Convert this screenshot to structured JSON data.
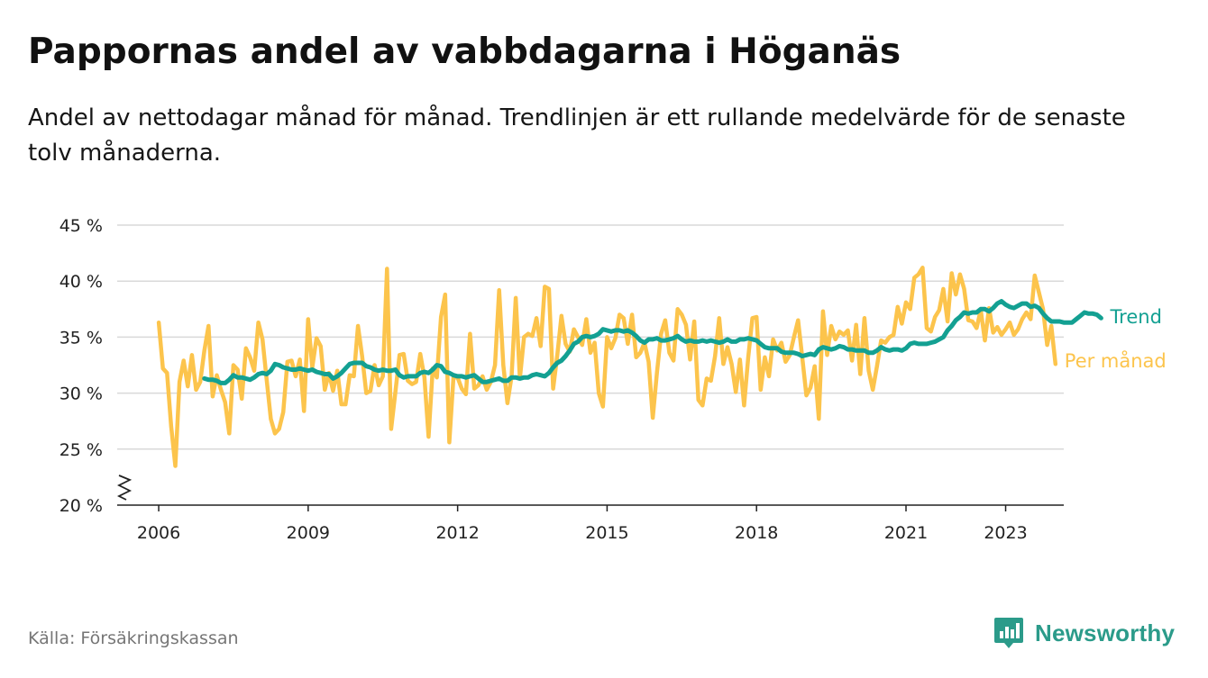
{
  "title": "Pappornas andel av vabbdagarna i Höganäs",
  "subtitle": "Andel av nettodagar månad för månad. Trendlinjen är ett rullande medelvärde för de senaste tolv månaderna.",
  "source": "Källa: Försäkringskassan",
  "brand": {
    "name": "Newsworthy",
    "logo_icon": "bar-chart-speech-bubble-icon"
  },
  "colors": {
    "monthly": "#fcc44c",
    "trend": "#13a092",
    "grid": "#d9d9d9",
    "axis": "#222222",
    "brand": "#2b9b8a"
  },
  "chart_data": {
    "type": "line",
    "x_unit": "months since January 2006",
    "x_ticks": [
      {
        "label": "2006",
        "x": 0
      },
      {
        "label": "2009",
        "x": 36
      },
      {
        "label": "2012",
        "x": 72
      },
      {
        "label": "2015",
        "x": 108
      },
      {
        "label": "2018",
        "x": 144
      },
      {
        "label": "2021",
        "x": 180
      },
      {
        "label": "2023",
        "x": 204
      }
    ],
    "y_ticks": [
      {
        "label": "20 %",
        "value": 20
      },
      {
        "label": "25 %",
        "value": 25
      },
      {
        "label": "30 %",
        "value": 30
      },
      {
        "label": "35 %",
        "value": 35
      },
      {
        "label": "40 %",
        "value": 40
      },
      {
        "label": "45 %",
        "value": 45
      }
    ],
    "xlim": [
      -10,
      218
    ],
    "ylim": [
      20,
      45
    ],
    "y_axis_break": true,
    "grid": true,
    "legend": "direct labels at line ends (right)",
    "series": [
      {
        "name": "Per månad",
        "key": "monthly",
        "start_x": 0,
        "values": [
          36.3,
          32.2,
          31.8,
          27,
          23.5,
          31,
          32.9,
          30.6,
          33.4,
          30.3,
          31,
          33.8,
          36,
          29.7,
          31.6,
          30.3,
          29.2,
          26.4,
          32.5,
          32.1,
          29.5,
          34,
          33.2,
          32,
          36.3,
          34.8,
          31.2,
          27.7,
          26.4,
          26.8,
          28.3,
          32.8,
          32.9,
          31.5,
          33,
          28.4,
          36.6,
          32.3,
          34.9,
          34.2,
          30.3,
          31.8,
          30.2,
          32,
          29,
          29,
          31.6,
          31.5,
          36,
          33.3,
          30,
          30.2,
          32.5,
          30.7,
          31.5,
          41.1,
          26.8,
          30.1,
          33.4,
          33.5,
          31.1,
          30.8,
          31,
          33.5,
          31.4,
          26.1,
          32.2,
          31.4,
          36.8,
          38.8,
          25.6,
          31.4,
          31.4,
          30.4,
          29.9,
          35.3,
          30.4,
          30.7,
          31.5,
          30.3,
          31,
          32.5,
          39.2,
          32.5,
          29.1,
          31.5,
          38.5,
          31.3,
          35,
          35.3,
          35.1,
          36.7,
          34.2,
          39.5,
          39.3,
          30.4,
          33.4,
          36.9,
          34.4,
          33.7,
          35.7,
          35,
          34.3,
          36.6,
          33.6,
          34.5,
          30,
          28.8,
          35,
          34,
          34.9,
          37,
          36.7,
          34.4,
          37,
          33.2,
          33.6,
          34.5,
          32.8,
          27.8,
          31.8,
          35.3,
          36.5,
          33.6,
          32.9,
          37.5,
          37,
          36.1,
          33,
          36.4,
          29.4,
          28.9,
          31.3,
          31.1,
          33.3,
          36.7,
          32.6,
          34.1,
          32.6,
          30.1,
          33,
          28.9,
          33.2,
          36.7,
          36.8,
          30.3,
          33.2,
          31.5,
          34.8,
          33.8,
          34.5,
          32.8,
          33.4,
          35,
          36.5,
          33.2,
          29.8,
          30.5,
          32.4,
          27.7,
          37.3,
          33.4,
          36,
          34.8,
          35.5,
          35.2,
          35.6,
          32.9,
          36.1,
          31.7,
          36.7,
          32,
          30.3,
          32.4,
          34.7,
          34.5,
          35,
          35.2,
          37.7,
          36.2,
          38.1,
          37.5,
          40.3,
          40.6,
          41.2,
          35.8,
          35.5,
          36.8,
          37.4,
          39.3,
          36.4,
          40.7,
          38.8,
          40.6,
          39.3,
          36.5,
          36.4,
          35.8,
          37.4,
          34.7,
          37.6,
          35.4,
          35.9,
          35.2,
          35.7,
          36.3,
          35.2,
          35.7,
          36.6,
          37.2,
          36.6,
          40.5,
          39,
          37.5,
          34.3,
          36,
          32.6
        ]
      },
      {
        "name": "Trend",
        "key": "trend",
        "start_x": 11,
        "values": [
          31.3,
          31.2,
          31.2,
          31.1,
          30.9,
          30.9,
          31.2,
          31.6,
          31.4,
          31.4,
          31.3,
          31.2,
          31.4,
          31.7,
          31.8,
          31.7,
          32.0,
          32.6,
          32.5,
          32.3,
          32.2,
          32.1,
          32.1,
          32.2,
          32.1,
          32.0,
          32.1,
          31.9,
          31.8,
          31.7,
          31.7,
          31.3,
          31.5,
          31.8,
          32.2,
          32.6,
          32.7,
          32.7,
          32.7,
          32.4,
          32.3,
          32.1,
          32.0,
          32.1,
          32.0,
          32.0,
          32.1,
          31.6,
          31.4,
          31.5,
          31.5,
          31.5,
          31.8,
          31.9,
          31.8,
          32.1,
          32.5,
          32.4,
          31.9,
          31.8,
          31.6,
          31.5,
          31.5,
          31.4,
          31.5,
          31.6,
          31.3,
          31.0,
          31.0,
          31.1,
          31.2,
          31.3,
          31.1,
          31.1,
          31.4,
          31.4,
          31.3,
          31.4,
          31.4,
          31.6,
          31.7,
          31.6,
          31.5,
          31.8,
          32.3,
          32.7,
          32.9,
          33.3,
          33.8,
          34.4,
          34.6,
          35.0,
          35.1,
          35.0,
          35.1,
          35.3,
          35.7,
          35.6,
          35.5,
          35.6,
          35.6,
          35.5,
          35.6,
          35.4,
          35.1,
          34.7,
          34.5,
          34.8,
          34.8,
          34.9,
          34.7,
          34.7,
          34.8,
          34.9,
          35.1,
          34.8,
          34.6,
          34.7,
          34.6,
          34.6,
          34.7,
          34.6,
          34.7,
          34.6,
          34.5,
          34.6,
          34.8,
          34.6,
          34.6,
          34.8,
          34.8,
          34.9,
          34.8,
          34.7,
          34.4,
          34.1,
          34.0,
          34.0,
          34.0,
          33.7,
          33.6,
          33.6,
          33.6,
          33.5,
          33.3,
          33.4,
          33.5,
          33.4,
          33.9,
          34.1,
          34.0,
          33.9,
          34.0,
          34.2,
          34.1,
          33.9,
          33.9,
          33.8,
          33.8,
          33.8,
          33.6,
          33.6,
          33.8,
          34.1,
          33.9,
          33.8,
          33.9,
          33.9,
          33.8,
          34.0,
          34.4,
          34.5,
          34.4,
          34.4,
          34.4,
          34.5,
          34.6,
          34.8,
          35.0,
          35.6,
          36.0,
          36.5,
          36.8,
          37.2,
          37.1,
          37.2,
          37.2,
          37.5,
          37.5,
          37.3,
          37.6,
          38.0,
          38.2,
          37.9,
          37.7,
          37.6,
          37.8,
          38.0,
          38.0,
          37.7,
          37.8,
          37.6,
          37.1,
          36.7,
          36.4,
          36.4,
          36.4,
          36.3,
          36.3,
          36.3,
          36.6,
          36.9,
          37.2,
          37.1,
          37.1,
          37.0,
          36.7
        ]
      }
    ]
  }
}
